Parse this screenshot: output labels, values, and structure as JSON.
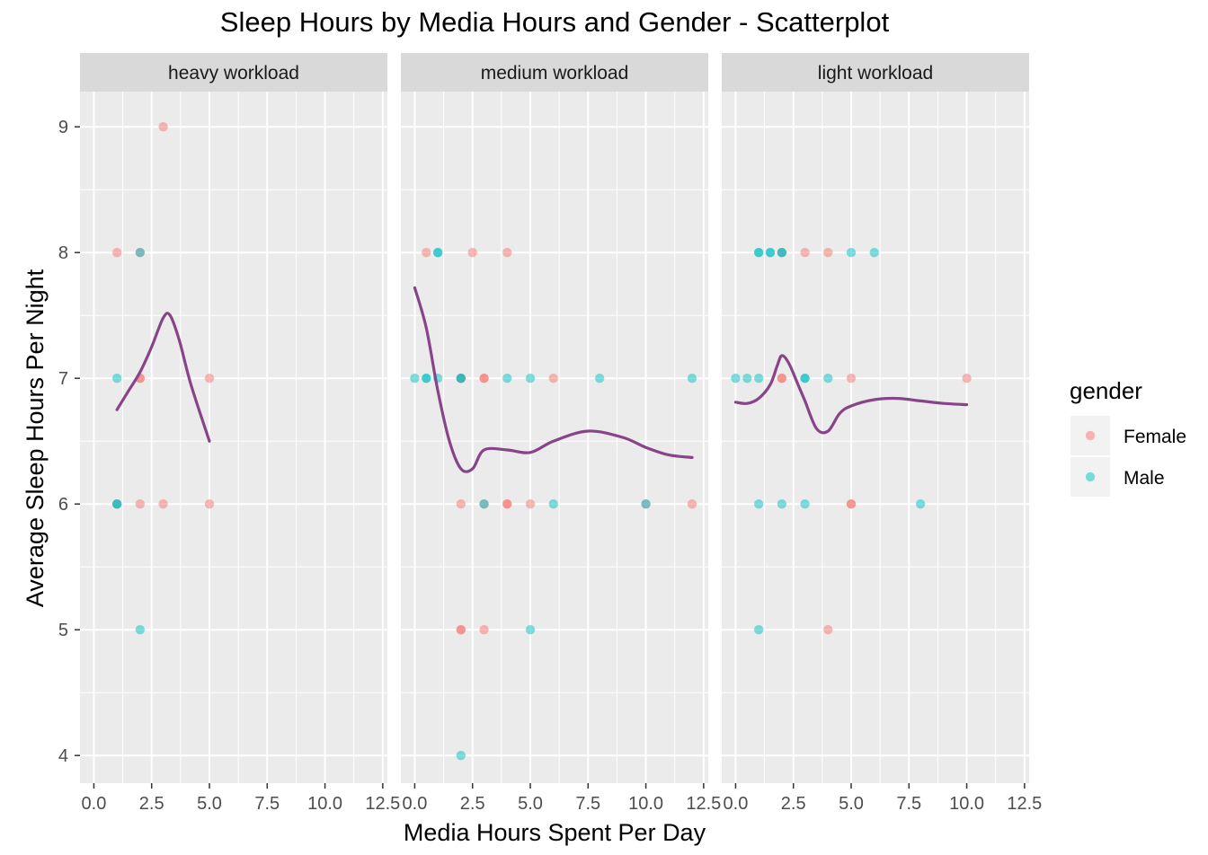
{
  "chart_data": {
    "type": "scatter",
    "title": "Sleep Hours by Media Hours and Gender - Scatterplot",
    "xlabel": "Media Hours Spent Per Day",
    "ylabel": "Average Sleep Hours Per Night",
    "xlim": [
      -0.6,
      12.7
    ],
    "ylim": [
      3.78,
      9.28
    ],
    "x_ticks": [
      0,
      2.5,
      5,
      7.5,
      10,
      12.5
    ],
    "x_tick_labels": [
      "0.0",
      "2.5",
      "5.0",
      "7.5",
      "10.0",
      "12.5"
    ],
    "y_ticks": [
      4,
      5,
      6,
      7,
      8,
      9
    ],
    "y_tick_labels": [
      "4",
      "5",
      "6",
      "7",
      "8",
      "9"
    ],
    "grid": true,
    "legend": {
      "title": "gender",
      "position": "right",
      "entries": [
        {
          "label": "Female",
          "color": "#F8766D"
        },
        {
          "label": "Male",
          "color": "#00BFC4"
        }
      ]
    },
    "smooth_color": "#884488",
    "panels": [
      {
        "label": "heavy workload",
        "series": [
          {
            "name": "Female",
            "x": [
              1,
              2,
              2,
              3,
              2,
              2,
              3,
              5,
              5,
              1
            ],
            "y": [
              8,
              8,
              7,
              9,
              7,
              6,
              6,
              6,
              7,
              6
            ]
          },
          {
            "name": "Male",
            "x": [
              1,
              1,
              2,
              2,
              1
            ],
            "y": [
              7,
              6,
              5,
              8,
              6
            ]
          }
        ],
        "smooth": {
          "x": [
            1,
            1.5,
            2,
            2.5,
            3,
            3.3,
            3.7,
            4.2,
            5
          ],
          "y": [
            6.75,
            6.9,
            7.05,
            7.25,
            7.48,
            7.5,
            7.3,
            6.95,
            6.5
          ]
        }
      },
      {
        "label": "medium workload",
        "series": [
          {
            "name": "Female",
            "x": [
              0.5,
              2.5,
              4,
              2,
              3,
              3,
              6,
              2,
              3,
              4,
              4,
              5,
              10,
              12,
              2,
              2,
              3,
              2
            ],
            "y": [
              8,
              8,
              8,
              7,
              7,
              7,
              7,
              6,
              6,
              6,
              6,
              6,
              6,
              6,
              5,
              5,
              5,
              7
            ]
          },
          {
            "name": "Male",
            "x": [
              1,
              1,
              0,
              0.5,
              0.5,
              1,
              2,
              4,
              5,
              8,
              12,
              3,
              6,
              10,
              5,
              2,
              2
            ],
            "y": [
              8,
              8,
              7,
              7,
              7,
              7,
              7,
              7,
              7,
              7,
              7,
              6,
              6,
              6,
              5,
              4,
              7
            ]
          }
        ],
        "smooth": {
          "x": [
            0,
            0.5,
            1,
            1.5,
            2,
            2.5,
            3,
            4,
            5,
            6,
            7.5,
            9,
            10,
            11,
            12
          ],
          "y": [
            7.72,
            7.4,
            6.9,
            6.5,
            6.28,
            6.28,
            6.43,
            6.43,
            6.41,
            6.5,
            6.58,
            6.53,
            6.45,
            6.39,
            6.37
          ]
        }
      },
      {
        "label": "light workload",
        "series": [
          {
            "name": "Female",
            "x": [
              2,
              3,
              4,
              2,
              2,
              5,
              10,
              5,
              5,
              4
            ],
            "y": [
              8,
              8,
              8,
              7,
              7,
              7,
              7,
              6,
              6,
              5
            ]
          },
          {
            "name": "Male",
            "x": [
              1,
              1.5,
              2,
              5,
              6,
              0,
              0.5,
              1,
              3,
              3,
              1,
              2,
              3,
              8,
              1,
              4,
              1,
              1.5,
              2
            ],
            "y": [
              8,
              8,
              8,
              8,
              8,
              7,
              7,
              7,
              7,
              7,
              6,
              6,
              6,
              6,
              5,
              7,
              8,
              8,
              8
            ]
          }
        ],
        "smooth": {
          "x": [
            0,
            0.5,
            1,
            1.5,
            1.8,
            2,
            2.3,
            2.7,
            3,
            3.5,
            4,
            4.5,
            5,
            6,
            7,
            8,
            9,
            10
          ],
          "y": [
            6.81,
            6.8,
            6.84,
            6.95,
            7.1,
            7.18,
            7.12,
            6.95,
            6.82,
            6.6,
            6.58,
            6.72,
            6.78,
            6.83,
            6.84,
            6.82,
            6.8,
            6.79
          ]
        }
      }
    ]
  }
}
